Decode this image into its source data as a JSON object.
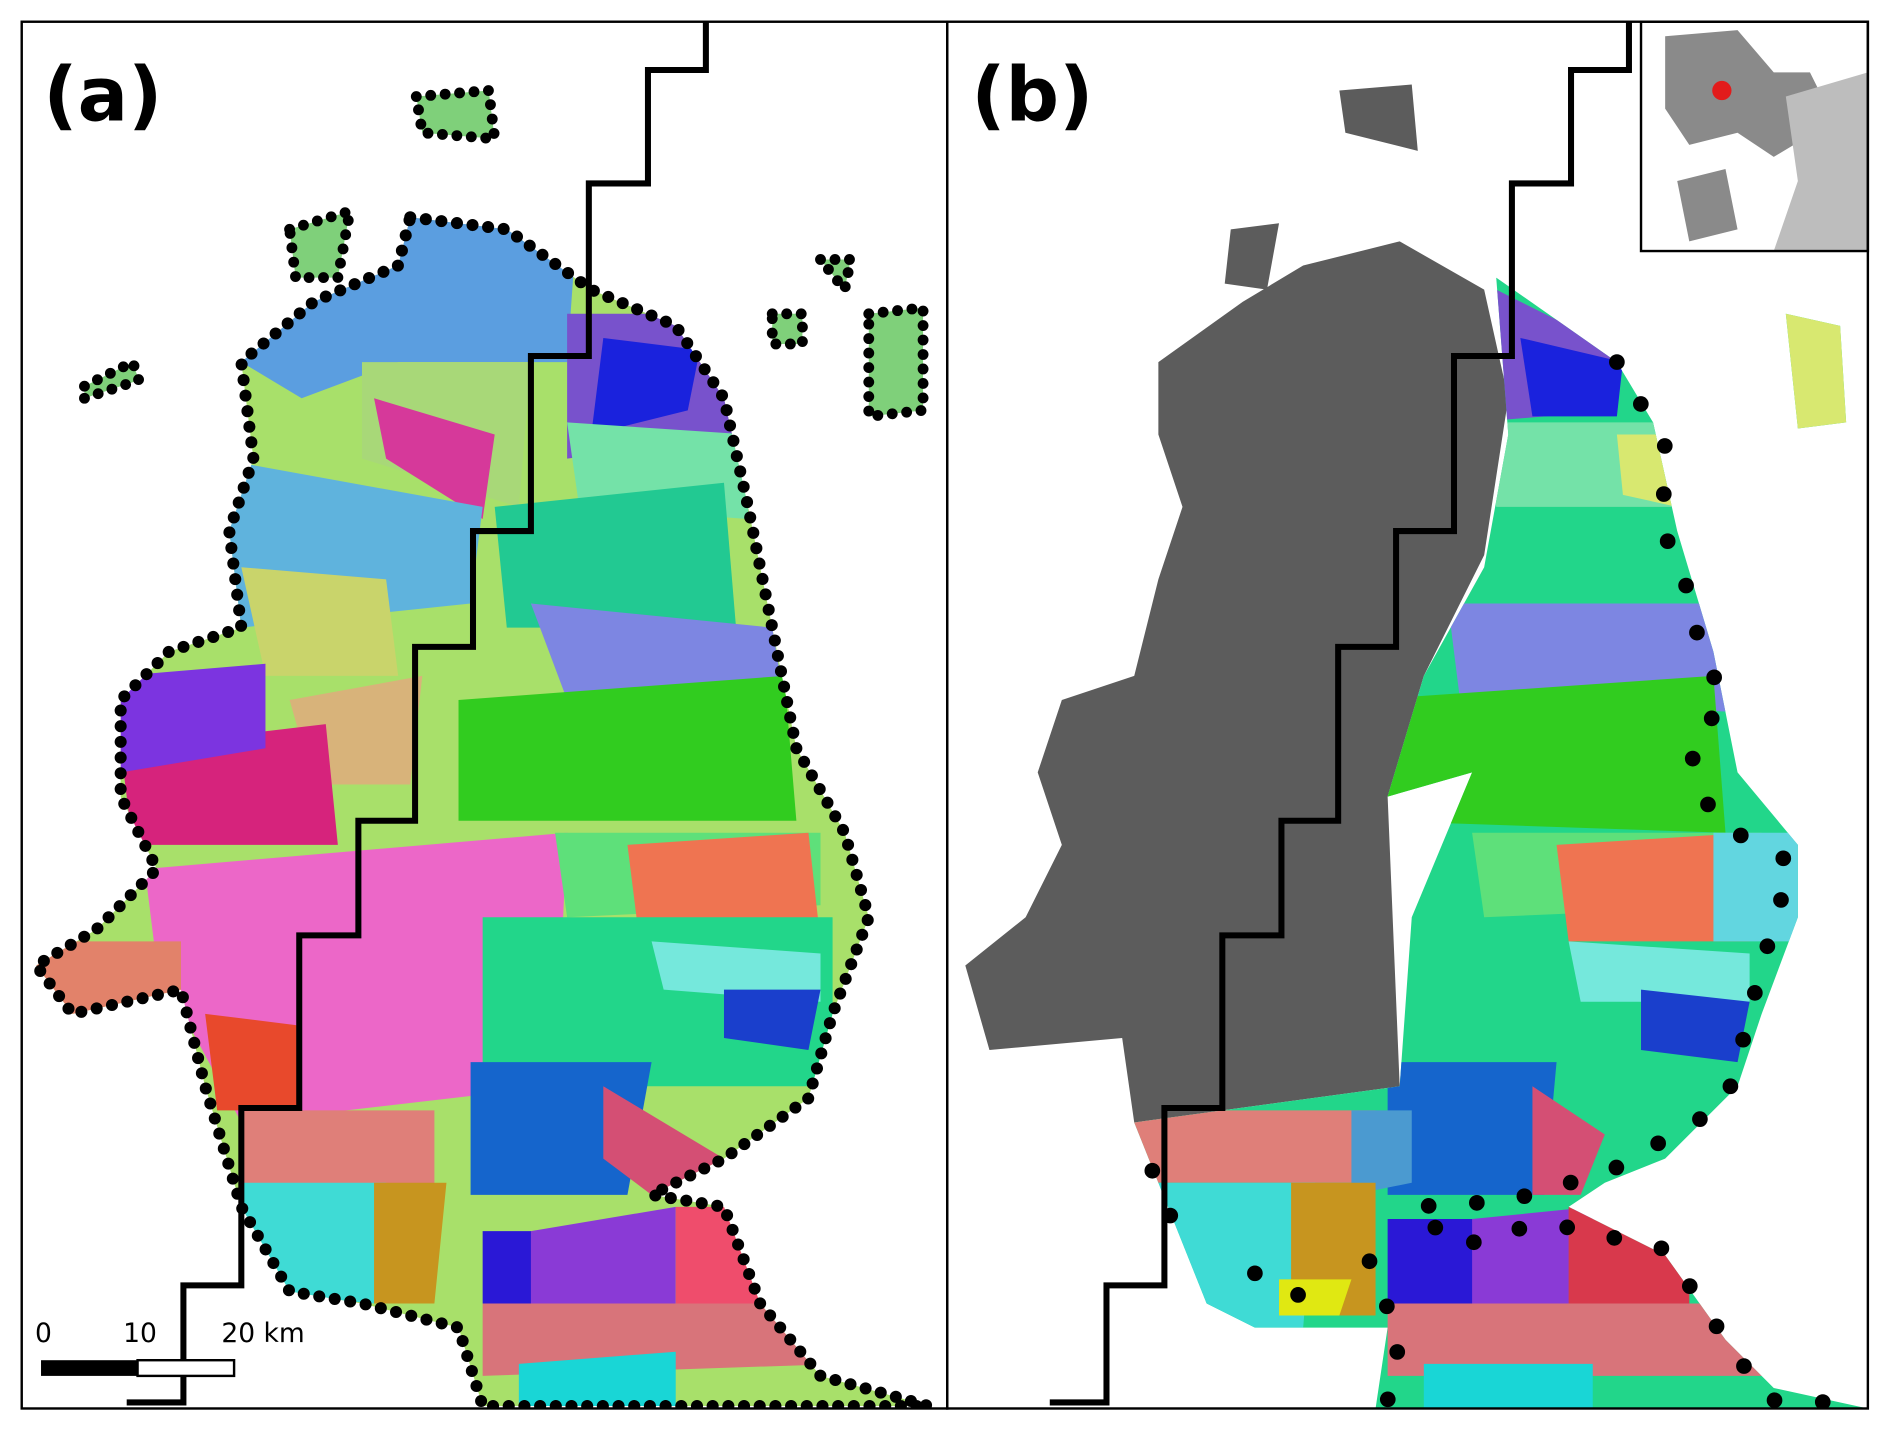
{
  "panels": [
    {
      "label": "(a)"
    },
    {
      "label": "(b)"
    }
  ],
  "scale_bar": {
    "labels": [
      "0",
      "10",
      "20 km"
    ]
  }
}
